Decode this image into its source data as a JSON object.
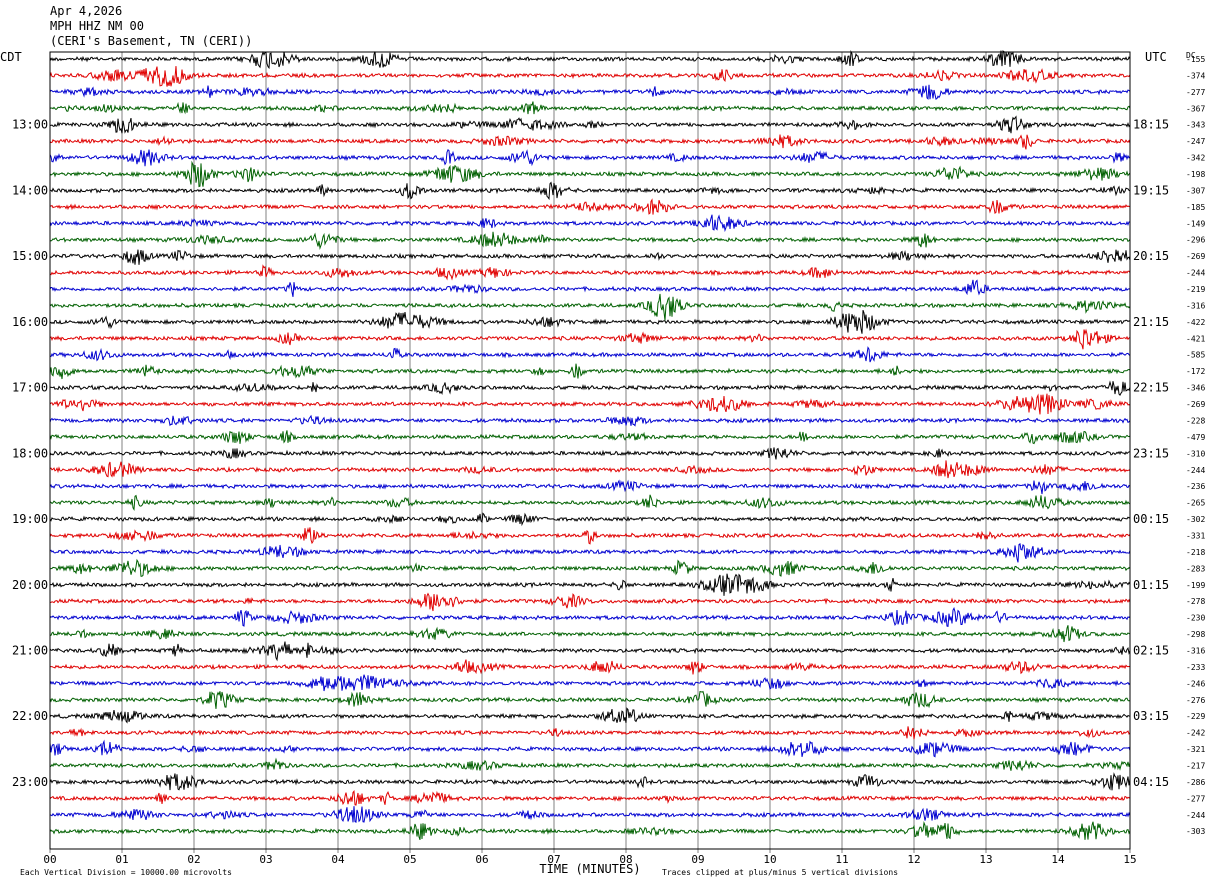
{
  "header": {
    "date": "Apr 4,2026",
    "station": "MPH HHZ NM 00",
    "location": "(CERI's Basement, TN (CERI))"
  },
  "chart_data": {
    "type": "line",
    "title": "",
    "left_timezone": "CDT",
    "right_timezone": "UTC",
    "dc_label": "DC",
    "xlabel": "TIME (MINUTES)",
    "xlim": [
      0,
      15
    ],
    "x_ticks": [
      "00",
      "01",
      "02",
      "03",
      "04",
      "05",
      "06",
      "07",
      "08",
      "09",
      "10",
      "11",
      "12",
      "13",
      "14",
      "15"
    ],
    "trace_colors": [
      "#000000",
      "#e00000",
      "#0000d0",
      "#006000"
    ],
    "left_hour_labels": [
      "13:00",
      "14:00",
      "15:00",
      "16:00",
      "17:00",
      "18:00",
      "19:00",
      "20:00",
      "21:00",
      "22:00",
      "23:00"
    ],
    "right_hour_labels": [
      "18:15",
      "19:15",
      "20:15",
      "21:15",
      "22:15",
      "23:15",
      "00:15",
      "01:15",
      "02:15",
      "03:15",
      "04:15"
    ],
    "dc_offsets": [
      "-155",
      "-374",
      "-277",
      "-367",
      "-343",
      "-247",
      "-342",
      "-198",
      "-307",
      "-185",
      "-149",
      "-296",
      "-269",
      "-244",
      "-219",
      "-316",
      "-422",
      "-421",
      "-585",
      "-172",
      "-346",
      "-269",
      "-228",
      "-479",
      "-310",
      "-244",
      "-236",
      "-265",
      "-302",
      "-331",
      "-218",
      "-283",
      "-199",
      "-278",
      "-230",
      "-298",
      "-316",
      "-233",
      "-246",
      "-276",
      "-229",
      "-242",
      "-321",
      "-217",
      "-286",
      "-277",
      "-244",
      "-303"
    ],
    "footer_left": "Each Vertical Division = 10000.00 microvolts",
    "footer_right": "Traces clipped at plus/minus 5 vertical divisions"
  }
}
